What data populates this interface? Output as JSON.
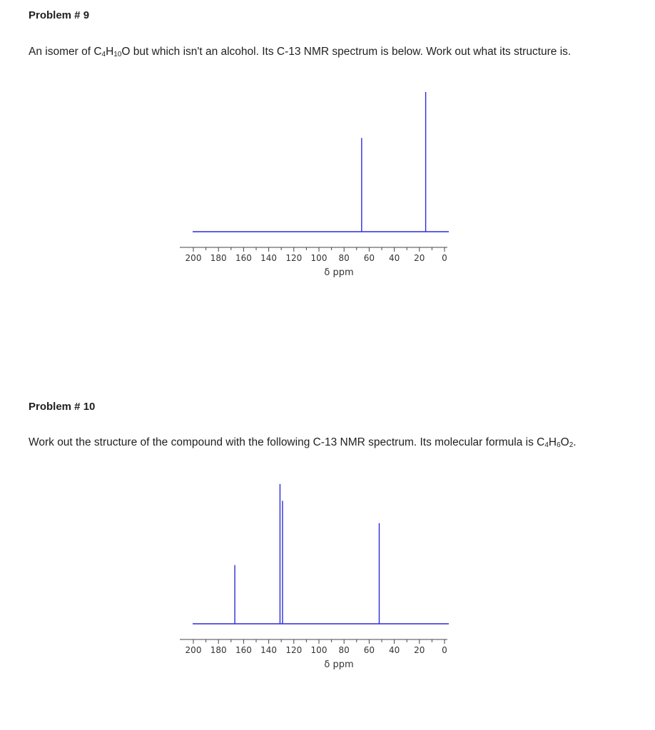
{
  "problems": [
    {
      "title": "Problem # 9",
      "text_before_formula": "An isomer of ",
      "formula": [
        {
          "t": "C",
          "sub": false
        },
        {
          "t": "4",
          "sub": true
        },
        {
          "t": "H",
          "sub": false
        },
        {
          "t": "10",
          "sub": true
        },
        {
          "t": "O",
          "sub": false
        }
      ],
      "text_after_formula": " but which isn't an alcohol. Its C-13 NMR spectrum is below. Work out what its structure is."
    },
    {
      "title": "Problem # 10",
      "text_before_formula": "Work out the structure of the compound with the following C-13 NMR spectrum. Its molecular formula is ",
      "formula": [
        {
          "t": "C",
          "sub": false
        },
        {
          "t": "4",
          "sub": true
        },
        {
          "t": "H",
          "sub": false
        },
        {
          "t": "6",
          "sub": true
        },
        {
          "t": "O",
          "sub": false
        },
        {
          "t": "2",
          "sub": true
        }
      ],
      "text_after_formula": "."
    }
  ],
  "chart_data": [
    {
      "type": "bar",
      "xlabel": "δ ppm",
      "xlim": [
        200,
        0
      ],
      "tick_labels": [
        "200",
        "180",
        "160",
        "140",
        "120",
        "100",
        "80",
        "60",
        "40",
        "20",
        "0"
      ],
      "tick_values": [
        200,
        180,
        160,
        140,
        120,
        100,
        80,
        60,
        40,
        20,
        0
      ],
      "line_color": "#2b2bd9",
      "peaks": [
        {
          "ppm": 66,
          "height": 0.67
        },
        {
          "ppm": 15,
          "height": 1.0
        }
      ]
    },
    {
      "type": "bar",
      "xlabel": "δ ppm",
      "xlim": [
        200,
        0
      ],
      "tick_labels": [
        "200",
        "180",
        "160",
        "140",
        "120",
        "100",
        "80",
        "60",
        "40",
        "20",
        "0"
      ],
      "tick_values": [
        200,
        180,
        160,
        140,
        120,
        100,
        80,
        60,
        40,
        20,
        0
      ],
      "line_color": "#2b2bd9",
      "peaks": [
        {
          "ppm": 167,
          "height": 0.42
        },
        {
          "ppm": 131,
          "height": 1.0
        },
        {
          "ppm": 129,
          "height": 0.88
        },
        {
          "ppm": 52,
          "height": 0.72
        }
      ]
    }
  ]
}
